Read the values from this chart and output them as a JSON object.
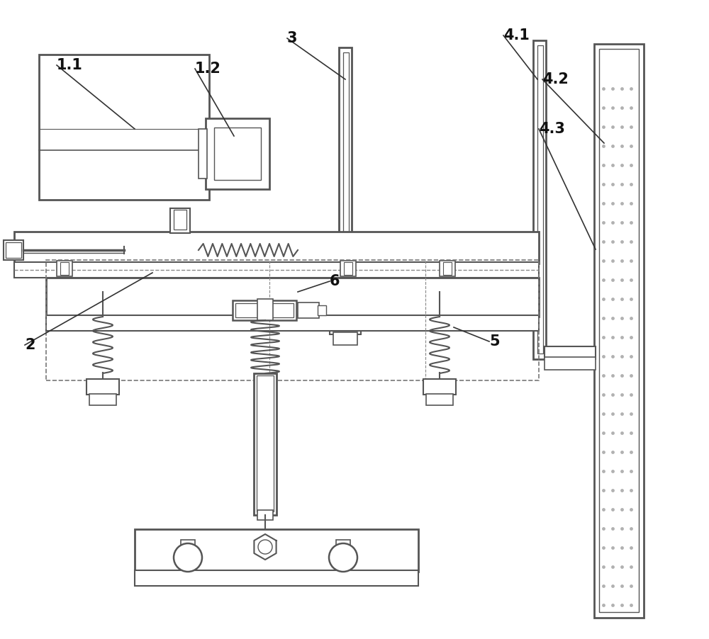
{
  "bg_color": "#ffffff",
  "lc": "#555555",
  "lc2": "#888888",
  "lw_main": 1.5,
  "lw_thin": 0.9,
  "label_fs": 15,
  "label_fw": "bold",
  "label_color": "#111111",
  "leader_color": "#333333"
}
